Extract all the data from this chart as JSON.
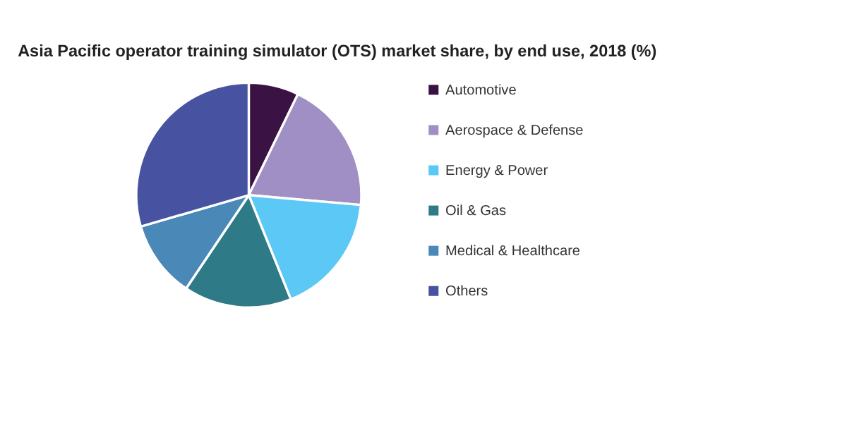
{
  "chart_data": {
    "type": "pie",
    "title": "Asia Pacific operator training simulator (OTS) market share, by end use, 2018 (%)",
    "categories": [
      "Automotive",
      "Aerospace & Defense",
      "Energy & Power",
      "Oil & Gas",
      "Medical & Healthcare",
      "Others"
    ],
    "values": [
      7.2,
      19.2,
      17.5,
      15.5,
      11.1,
      29.5
    ],
    "colors": [
      "#3a1244",
      "#a08fc4",
      "#5bc8f5",
      "#2e7a86",
      "#4a88b8",
      "#4753a0"
    ],
    "legend": "right"
  }
}
